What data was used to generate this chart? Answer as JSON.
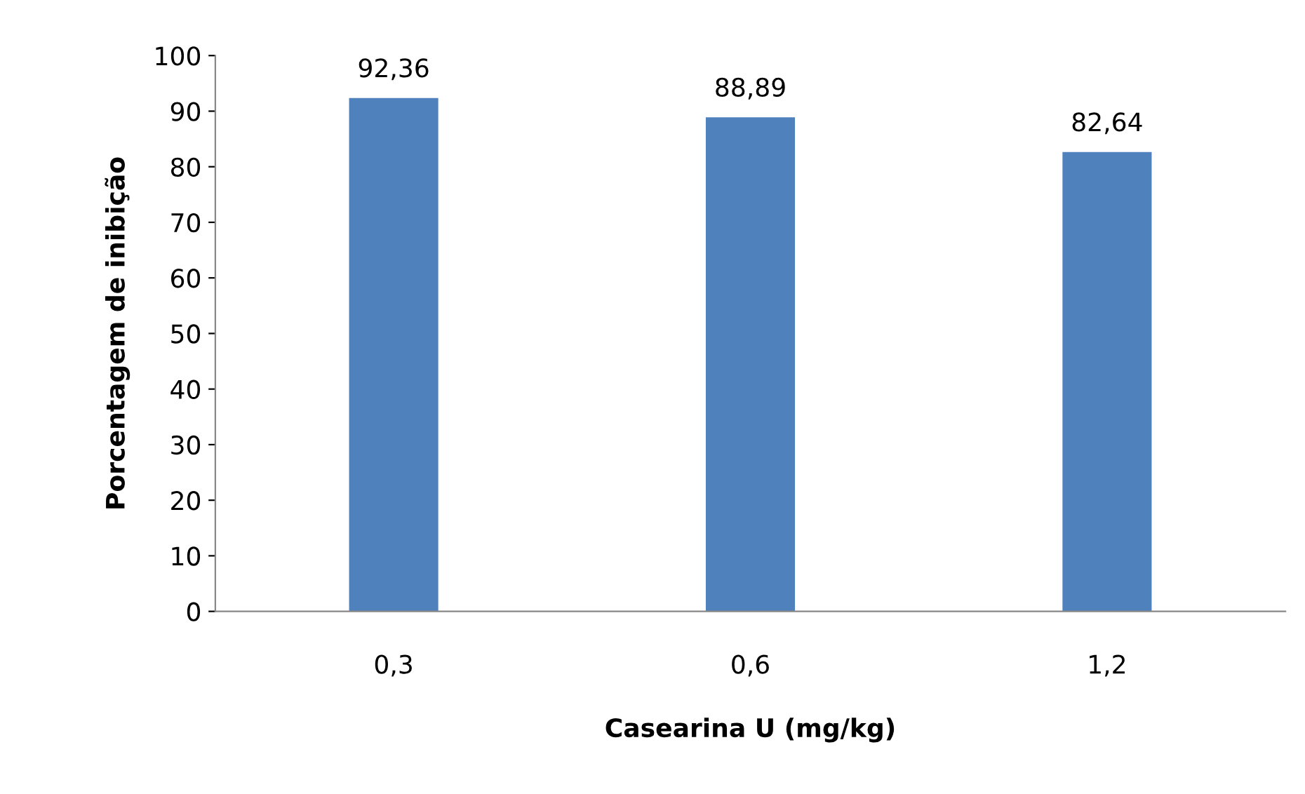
{
  "chart_data": {
    "type": "bar",
    "xlabel": "Casearina U (mg/kg)",
    "ylabel": "Porcentagem de inibição",
    "categories": [
      "0,3",
      "0,6",
      "1,2"
    ],
    "values": [
      92.36,
      88.89,
      82.64
    ],
    "value_labels": [
      "92,36",
      "88,89",
      "82,64"
    ],
    "color": "#4f81bd",
    "ylim": [
      0,
      100
    ],
    "yticks": [
      0,
      10,
      20,
      30,
      40,
      50,
      60,
      70,
      80,
      90,
      100
    ],
    "grid": false,
    "legend": false
  }
}
